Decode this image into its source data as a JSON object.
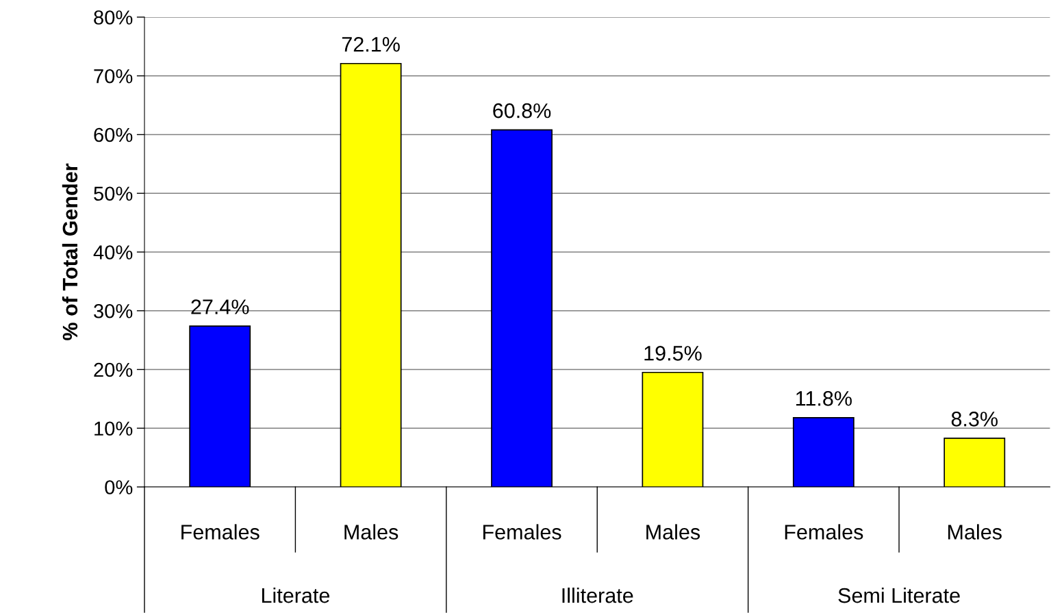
{
  "chart_data": {
    "type": "bar",
    "ylabel": "% of Total Gender",
    "categories": [
      "Females",
      "Males",
      "Females",
      "Males",
      "Females",
      "Males"
    ],
    "values": [
      27.4,
      72.1,
      60.8,
      19.5,
      11.8,
      8.3
    ],
    "colors": [
      "#0000ff",
      "#ffff00",
      "#0000ff",
      "#ffff00",
      "#0000ff",
      "#ffff00"
    ],
    "value_labels": [
      "27.4%",
      "72.1%",
      "60.8%",
      "19.5%",
      "11.8%",
      "8.3%"
    ],
    "annotations": [
      "Literate",
      "Illiterate",
      "Semi Literate"
    ],
    "ylim": [
      0,
      80
    ],
    "yticks": [
      {
        "value": 0,
        "label": "0%"
      },
      {
        "value": 10,
        "label": "10%"
      },
      {
        "value": 20,
        "label": "20%"
      },
      {
        "value": 30,
        "label": "30%"
      },
      {
        "value": 40,
        "label": "40%"
      },
      {
        "value": 50,
        "label": "50%"
      },
      {
        "value": 60,
        "label": "60%"
      },
      {
        "value": 70,
        "label": "70%"
      },
      {
        "value": 80,
        "label": "80%"
      }
    ],
    "grid": "y",
    "legend": false
  }
}
